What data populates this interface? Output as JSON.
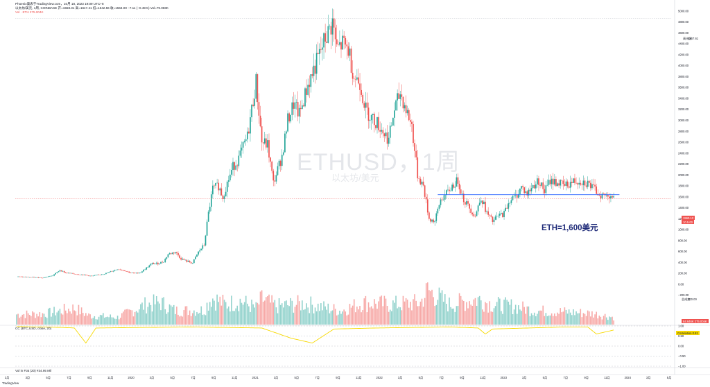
{
  "header": {
    "line1": "Phoenix発表于TradingView.com，10月 18, 2023 19:09 UTC+8",
    "line2": "以太坊/美元, 1周, COINBASE 开=1558.31 高=1647.41 低=1542.56 收=1564.00 −7.11 (−0.45%) Vol=79.068K",
    "line3": "Vol · ETH 275.004K"
  },
  "watermark": {
    "symbol": "ETHUSD，1周",
    "name": "以太坊/美元"
  },
  "annotation": "ETH=1,600美元",
  "price_badges": {
    "hline_label": "高光区",
    "hline_value": "4867.61",
    "last_price": "1560.13",
    "last_price_sub": "10.5.00",
    "vol_label": "总成交",
    "vol_value": "300.00",
    "vol_last": "84.646K 275.004K"
  },
  "correlation_badge": "Correlation  0.81",
  "indicator_labels": {
    "cc": "CC (BTC,USD, close, 20)",
    "vol": "Vol in Fiat (20)  #34.95 Mil"
  },
  "tv_logo": "TradingView",
  "colors": {
    "up": "#26a69a",
    "down": "#ef5350",
    "hline": "#2962ff",
    "corr": "#f7d900"
  },
  "chart_data": {
    "type": "candlestick",
    "title": "以太坊/美元, 1周, COINBASE",
    "xlabel": "",
    "ylabel": "",
    "x_axis_labels": [
      "2月",
      "3月",
      "5月",
      "7月",
      "9月",
      "11月",
      "2020",
      "3月",
      "5月",
      "7月",
      "9月",
      "11月",
      "2021",
      "3月",
      "5月",
      "7月",
      "9月",
      "11月",
      "2022",
      "3月",
      "5月",
      "7月",
      "9月",
      "11月",
      "2023",
      "3月",
      "5月",
      "7月",
      "9月",
      "11月",
      "2024",
      "3月",
      "5月"
    ],
    "y_axis_labels": [
      "5000.00",
      "4800.00",
      "4600.00",
      "4400.00",
      "4200.00",
      "4000.00",
      "3800.00",
      "3600.00",
      "3400.00",
      "3200.00",
      "3000.00",
      "2800.00",
      "2600.00",
      "2400.00",
      "2200.00",
      "2000.00",
      "1800.00",
      "1600.00",
      "1400.00",
      "1200.00",
      "1000.00",
      "800.00",
      "600.00",
      "400.00",
      "200.00",
      "0.00",
      "−200.00"
    ],
    "ylim": [
      -280,
      5100
    ],
    "horizontal_line": {
      "value": 1640,
      "from": "2022年8月",
      "to": "2023年10月"
    },
    "price_path": [
      [
        0,
        140
      ],
      [
        18,
        120
      ],
      [
        25,
        160
      ],
      [
        30,
        260
      ],
      [
        34,
        210
      ],
      [
        40,
        190
      ],
      [
        46,
        175
      ],
      [
        52,
        150
      ],
      [
        58,
        180
      ],
      [
        62,
        200
      ],
      [
        66,
        240
      ],
      [
        70,
        280
      ],
      [
        74,
        260
      ],
      [
        78,
        220
      ],
      [
        82,
        200
      ],
      [
        86,
        220
      ],
      [
        90,
        300
      ],
      [
        94,
        380
      ],
      [
        98,
        380
      ],
      [
        102,
        420
      ],
      [
        105,
        550
      ],
      [
        110,
        590
      ],
      [
        114,
        470
      ],
      [
        118,
        420
      ],
      [
        122,
        390
      ],
      [
        126,
        590
      ],
      [
        130,
        720
      ],
      [
        133,
        1300
      ],
      [
        136,
        1750
      ],
      [
        140,
        1800
      ],
      [
        143,
        1600
      ],
      [
        146,
        1850
      ],
      [
        150,
        2150
      ],
      [
        154,
        2300
      ],
      [
        160,
        2700
      ],
      [
        166,
        3700
      ],
      [
        170,
        2600
      ],
      [
        174,
        2550
      ],
      [
        178,
        1850
      ],
      [
        184,
        2350
      ],
      [
        188,
        3000
      ],
      [
        192,
        3300
      ],
      [
        196,
        3100
      ],
      [
        202,
        3650
      ],
      [
        210,
        4200
      ],
      [
        214,
        4500
      ],
      [
        216,
        4600
      ],
      [
        219,
        4800
      ],
      [
        222,
        4300
      ],
      [
        226,
        4400
      ],
      [
        230,
        4300
      ],
      [
        234,
        3800
      ],
      [
        238,
        3700
      ],
      [
        242,
        3200
      ],
      [
        246,
        3050
      ],
      [
        250,
        2950
      ],
      [
        254,
        2800
      ],
      [
        258,
        2650
      ],
      [
        262,
        3200
      ],
      [
        266,
        3500
      ],
      [
        270,
        3200
      ],
      [
        274,
        2900
      ],
      [
        278,
        2000
      ],
      [
        282,
        1800
      ],
      [
        286,
        1200
      ],
      [
        290,
        1150
      ],
      [
        294,
        1550
      ],
      [
        298,
        1650
      ],
      [
        302,
        1800
      ],
      [
        306,
        1900
      ],
      [
        310,
        1550
      ],
      [
        314,
        1400
      ],
      [
        318,
        1250
      ],
      [
        322,
        1600
      ],
      [
        326,
        1300
      ],
      [
        330,
        1150
      ],
      [
        334,
        1250
      ],
      [
        338,
        1300
      ],
      [
        342,
        1550
      ],
      [
        346,
        1600
      ],
      [
        350,
        1780
      ],
      [
        354,
        1650
      ],
      [
        358,
        1800
      ],
      [
        362,
        1900
      ],
      [
        366,
        1700
      ],
      [
        370,
        1900
      ],
      [
        376,
        1850
      ],
      [
        380,
        1800
      ],
      [
        386,
        1880
      ],
      [
        390,
        1900
      ],
      [
        396,
        1850
      ],
      [
        400,
        1750
      ],
      [
        404,
        1650
      ],
      [
        408,
        1620
      ],
      [
        412,
        1640
      ],
      [
        414,
        1564
      ]
    ],
    "volume_path": [
      [
        0,
        28
      ],
      [
        20,
        30
      ],
      [
        40,
        45
      ],
      [
        50,
        25
      ],
      [
        70,
        20
      ],
      [
        90,
        55
      ],
      [
        100,
        60
      ],
      [
        110,
        38
      ],
      [
        130,
        40
      ],
      [
        135,
        75
      ],
      [
        145,
        55
      ],
      [
        155,
        65
      ],
      [
        166,
        45
      ],
      [
        170,
        70
      ],
      [
        180,
        50
      ],
      [
        200,
        58
      ],
      [
        215,
        45
      ],
      [
        225,
        38
      ],
      [
        240,
        60
      ],
      [
        260,
        55
      ],
      [
        280,
        60
      ],
      [
        285,
        95
      ],
      [
        300,
        55
      ],
      [
        320,
        70
      ],
      [
        330,
        55
      ],
      [
        345,
        50
      ],
      [
        360,
        38
      ],
      [
        380,
        35
      ],
      [
        400,
        30
      ],
      [
        414,
        20
      ]
    ],
    "correlation_path": [
      [
        0,
        0.97
      ],
      [
        30,
        0.93
      ],
      [
        40,
        0.9
      ],
      [
        48,
        0.15
      ],
      [
        55,
        0.9
      ],
      [
        120,
        0.95
      ],
      [
        170,
        0.9
      ],
      [
        190,
        0.4
      ],
      [
        205,
        0.15
      ],
      [
        220,
        0.85
      ],
      [
        250,
        0.9
      ],
      [
        300,
        0.95
      ],
      [
        320,
        0.9
      ],
      [
        325,
        0.6
      ],
      [
        330,
        0.85
      ],
      [
        380,
        0.95
      ],
      [
        396,
        0.95
      ],
      [
        402,
        0.6
      ],
      [
        414,
        0.8
      ]
    ],
    "correlation_axis_labels": [
      "1.00",
      "0.50",
      "0.00",
      "−0.50",
      "−1.00"
    ],
    "correlation_last": 0.81
  }
}
